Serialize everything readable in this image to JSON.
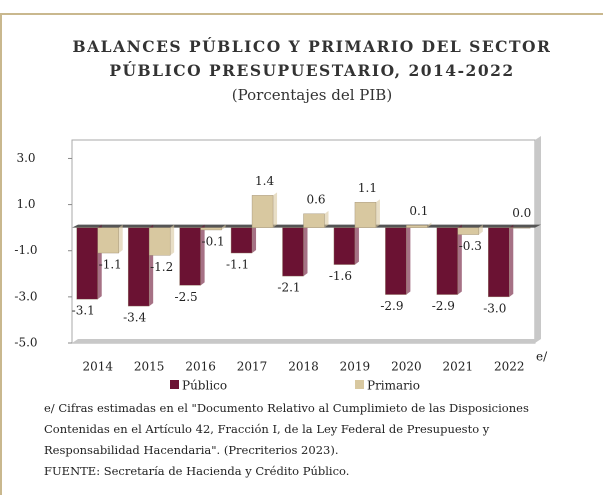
{
  "chart_data": {
    "type": "bar",
    "title_lines": [
      "BALANCES PÚBLICO Y PRIMARIO DEL SECTOR",
      "PÚBLICO PRESUPUESTARIO, 2014-2022"
    ],
    "subtitle": "(Porcentajes del PIB)",
    "categories": [
      "2014",
      "2015",
      "2016",
      "2017",
      "2018",
      "2019",
      "2020",
      "2021",
      "2022"
    ],
    "category_note": "e/",
    "series": [
      {
        "name": "Público",
        "color": "#6b1233",
        "values": [
          -3.1,
          -3.4,
          -2.5,
          -1.1,
          -2.1,
          -1.6,
          -2.9,
          -2.9,
          -3.0
        ],
        "value_labels": [
          "-3.1",
          "-3.4",
          "-2.5",
          "-1.1",
          "-2.1",
          "-1.6",
          "-2.9",
          "-2.9",
          "-3.0"
        ]
      },
      {
        "name": "Primario",
        "color": "#d8c8a0",
        "values": [
          -1.1,
          -1.2,
          -0.1,
          1.4,
          0.6,
          1.1,
          0.1,
          -0.3,
          0.0
        ],
        "value_labels": [
          "-1.1",
          "-1.2",
          "-0.1",
          "1.4",
          "0.6",
          "1.1",
          "0.1",
          "-0.3",
          "0.0"
        ]
      }
    ],
    "ylim": [
      -5,
      3.8
    ],
    "yticks": [
      {
        "value": 3,
        "label": "3.0"
      },
      {
        "value": 1,
        "label": "1.0"
      },
      {
        "value": -1,
        "label": "-1.0"
      },
      {
        "value": -3,
        "label": "-3.0"
      },
      {
        "value": -5,
        "label": "-5.0"
      }
    ],
    "notes": [
      "e/ Cifras estimadas en el \"Documento Relativo al Cumplimieto de las Disposiciones",
      "Contenidas en el Artículo 42, Fracción I, de la Ley Federal de Presupuesto y",
      "Responsabilidad Hacendaria\". (Precriterios 2023).",
      "FUENTE: Secretaría de Hacienda y Crédito Público."
    ]
  }
}
